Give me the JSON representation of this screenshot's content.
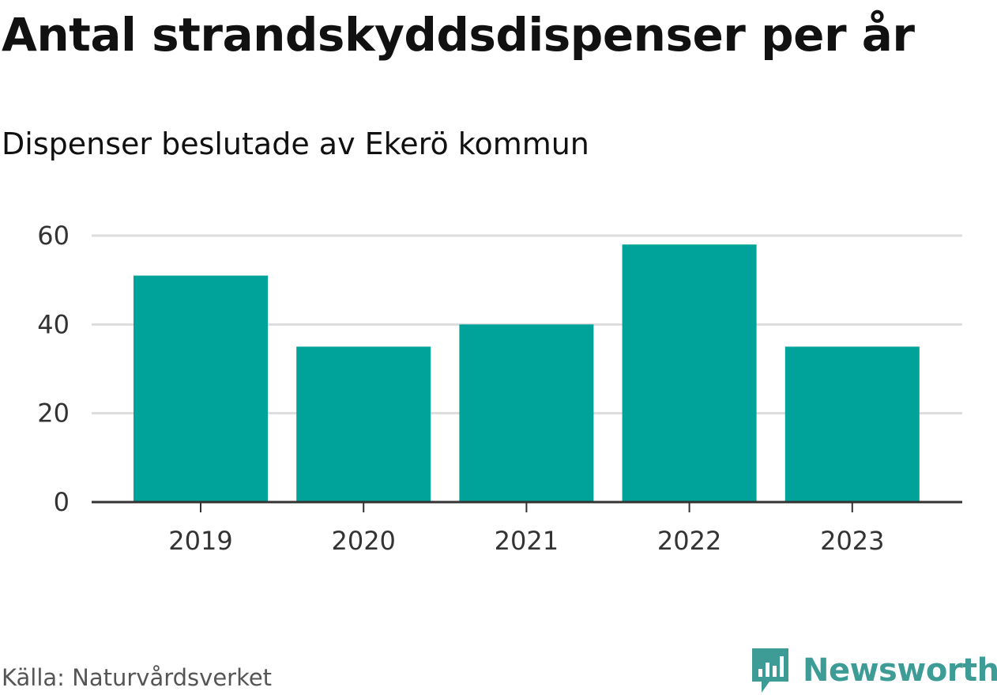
{
  "header": {
    "title": "Antal strandskyddsdispenser per år",
    "subtitle": "Dispenser beslutade av Ekerö kommun"
  },
  "footer": {
    "source": "Källa: Naturvårdsverket",
    "brand": "Newsworthy",
    "brand_icon": "bar-chart-bubble-icon"
  },
  "colors": {
    "bar": "#00a39a",
    "brand": "#3d9c95",
    "grid": "#dddddd",
    "axis": "#333333"
  },
  "chart_data": {
    "type": "bar",
    "title": "Antal strandskyddsdispenser per år",
    "subtitle": "Dispenser beslutade av Ekerö kommun",
    "xlabel": "",
    "ylabel": "",
    "categories": [
      "2019",
      "2020",
      "2021",
      "2022",
      "2023"
    ],
    "values": [
      51,
      35,
      40,
      58,
      35
    ],
    "ylim": [
      0,
      60
    ],
    "yticks": [
      0,
      20,
      40,
      60
    ],
    "grid": true,
    "legend": "none"
  }
}
